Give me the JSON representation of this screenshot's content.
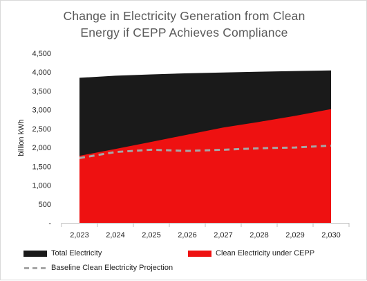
{
  "chart_data": {
    "type": "area",
    "title_lines": [
      "Change in Electricity Generation from Clean",
      "Energy if CEPP Achieves Compliance"
    ],
    "ylabel": "billion kWh",
    "xlabel": "",
    "x": [
      2023,
      2024,
      2025,
      2026,
      2027,
      2028,
      2029,
      2030
    ],
    "x_tick_labels": [
      "2,023",
      "2,024",
      "2,025",
      "2,026",
      "2,027",
      "2,028",
      "2,029",
      "2,030"
    ],
    "y_tick_labels": [
      "-",
      "500",
      "1,000",
      "1,500",
      "2,000",
      "2,500",
      "3,000",
      "3,500",
      "4,000",
      "4,500"
    ],
    "ylim": [
      0,
      4500
    ],
    "y_step": 500,
    "grid": false,
    "legend_placement": "bottom",
    "series": [
      {
        "name": "Total Electricity",
        "style": "area",
        "color": "#1a1a1a",
        "values": [
          3850,
          3905,
          3940,
          3970,
          3990,
          4010,
          4030,
          4045
        ]
      },
      {
        "name": "Clean Electricity under CEPP",
        "style": "area",
        "color": "#ee1111",
        "values": [
          1780,
          1960,
          2150,
          2340,
          2530,
          2680,
          2840,
          3020
        ]
      },
      {
        "name": "Baseline Clean Electricity Projection",
        "style": "dashed-line",
        "color": "#a6a6a6",
        "values": [
          1720,
          1880,
          1940,
          1910,
          1940,
          1980,
          2000,
          2050
        ]
      }
    ]
  }
}
